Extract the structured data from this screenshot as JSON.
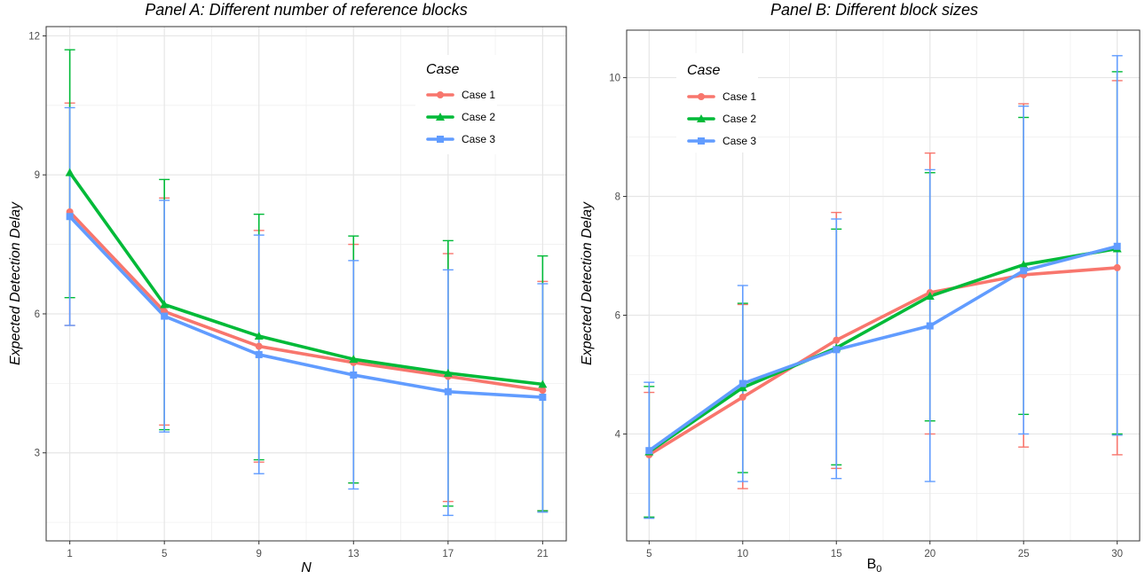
{
  "chart_data": [
    {
      "type": "line",
      "title": "Panel A: Different number of reference blocks",
      "xlabel": "N",
      "xlabel_italic": true,
      "ylabel": "Expected Detection Delay",
      "x": [
        1,
        5,
        9,
        13,
        17,
        21
      ],
      "xticks": [
        1,
        5,
        9,
        13,
        17,
        21
      ],
      "xticklabels": [
        "1",
        "5",
        "9",
        "13",
        "17",
        "21"
      ],
      "yticks": [
        3,
        6,
        9,
        12
      ],
      "yticklabels": [
        "3",
        "6",
        "9",
        "12"
      ],
      "xlim": [
        0,
        22
      ],
      "ylim": [
        1.1,
        12.2
      ],
      "grid": true,
      "legend_title": "Case",
      "legend_position": "top-right",
      "series": [
        {
          "name": "Case 1",
          "color": "#F8766D",
          "marker": "circle",
          "values": [
            8.2,
            6.05,
            5.3,
            4.95,
            4.65,
            4.35
          ],
          "lower": [
            5.75,
            3.6,
            2.8,
            2.35,
            1.95,
            1.75
          ],
          "upper": [
            10.55,
            8.5,
            7.8,
            7.5,
            7.3,
            6.7
          ]
        },
        {
          "name": "Case 2",
          "color": "#00BA38",
          "marker": "triangle",
          "values": [
            9.05,
            6.2,
            5.52,
            5.02,
            4.72,
            4.48
          ],
          "lower": [
            6.35,
            3.5,
            2.85,
            2.35,
            1.85,
            1.75
          ],
          "upper": [
            11.7,
            8.9,
            8.15,
            7.68,
            7.58,
            7.25
          ]
        },
        {
          "name": "Case 3",
          "color": "#619CFF",
          "marker": "square",
          "values": [
            8.1,
            5.95,
            5.12,
            4.68,
            4.32,
            4.2
          ],
          "lower": [
            5.75,
            3.45,
            2.55,
            2.22,
            1.65,
            1.72
          ],
          "upper": [
            10.45,
            8.45,
            7.7,
            7.15,
            6.95,
            6.65
          ]
        }
      ]
    },
    {
      "type": "line",
      "title": "Panel B: Different block sizes",
      "xlabel": "B",
      "xlabel_sub": "0",
      "ylabel": "Expected Detection Delay",
      "x": [
        5,
        10,
        15,
        20,
        25,
        30
      ],
      "xticks": [
        5,
        10,
        15,
        20,
        25,
        30
      ],
      "xticklabels": [
        "5",
        "10",
        "15",
        "20",
        "25",
        "30"
      ],
      "yticks": [
        4,
        6,
        8,
        10
      ],
      "yticklabels": [
        "4",
        "6",
        "8",
        "10"
      ],
      "xlim": [
        3.8,
        31.2
      ],
      "ylim": [
        2.2,
        10.8
      ],
      "grid": true,
      "legend_title": "Case",
      "legend_position": "top-left",
      "series": [
        {
          "name": "Case 1",
          "color": "#F8766D",
          "marker": "circle",
          "values": [
            3.65,
            4.62,
            5.58,
            6.38,
            6.68,
            6.8
          ],
          "lower": [
            2.6,
            3.08,
            3.42,
            4.0,
            3.78,
            3.65
          ],
          "upper": [
            4.7,
            6.18,
            7.73,
            8.73,
            9.56,
            9.95
          ]
        },
        {
          "name": "Case 2",
          "color": "#00BA38",
          "marker": "triangle",
          "values": [
            3.7,
            4.78,
            5.45,
            6.32,
            6.85,
            7.12
          ],
          "lower": [
            2.6,
            3.35,
            3.48,
            4.22,
            4.33,
            4.0
          ],
          "upper": [
            4.8,
            6.2,
            7.45,
            8.4,
            9.33,
            10.1
          ]
        },
        {
          "name": "Case 3",
          "color": "#619CFF",
          "marker": "square",
          "values": [
            3.72,
            4.85,
            5.42,
            5.82,
            6.75,
            7.16
          ],
          "lower": [
            2.58,
            3.2,
            3.25,
            3.2,
            4.0,
            3.98
          ],
          "upper": [
            4.87,
            6.5,
            7.62,
            8.45,
            9.52,
            10.37
          ]
        }
      ]
    }
  ]
}
